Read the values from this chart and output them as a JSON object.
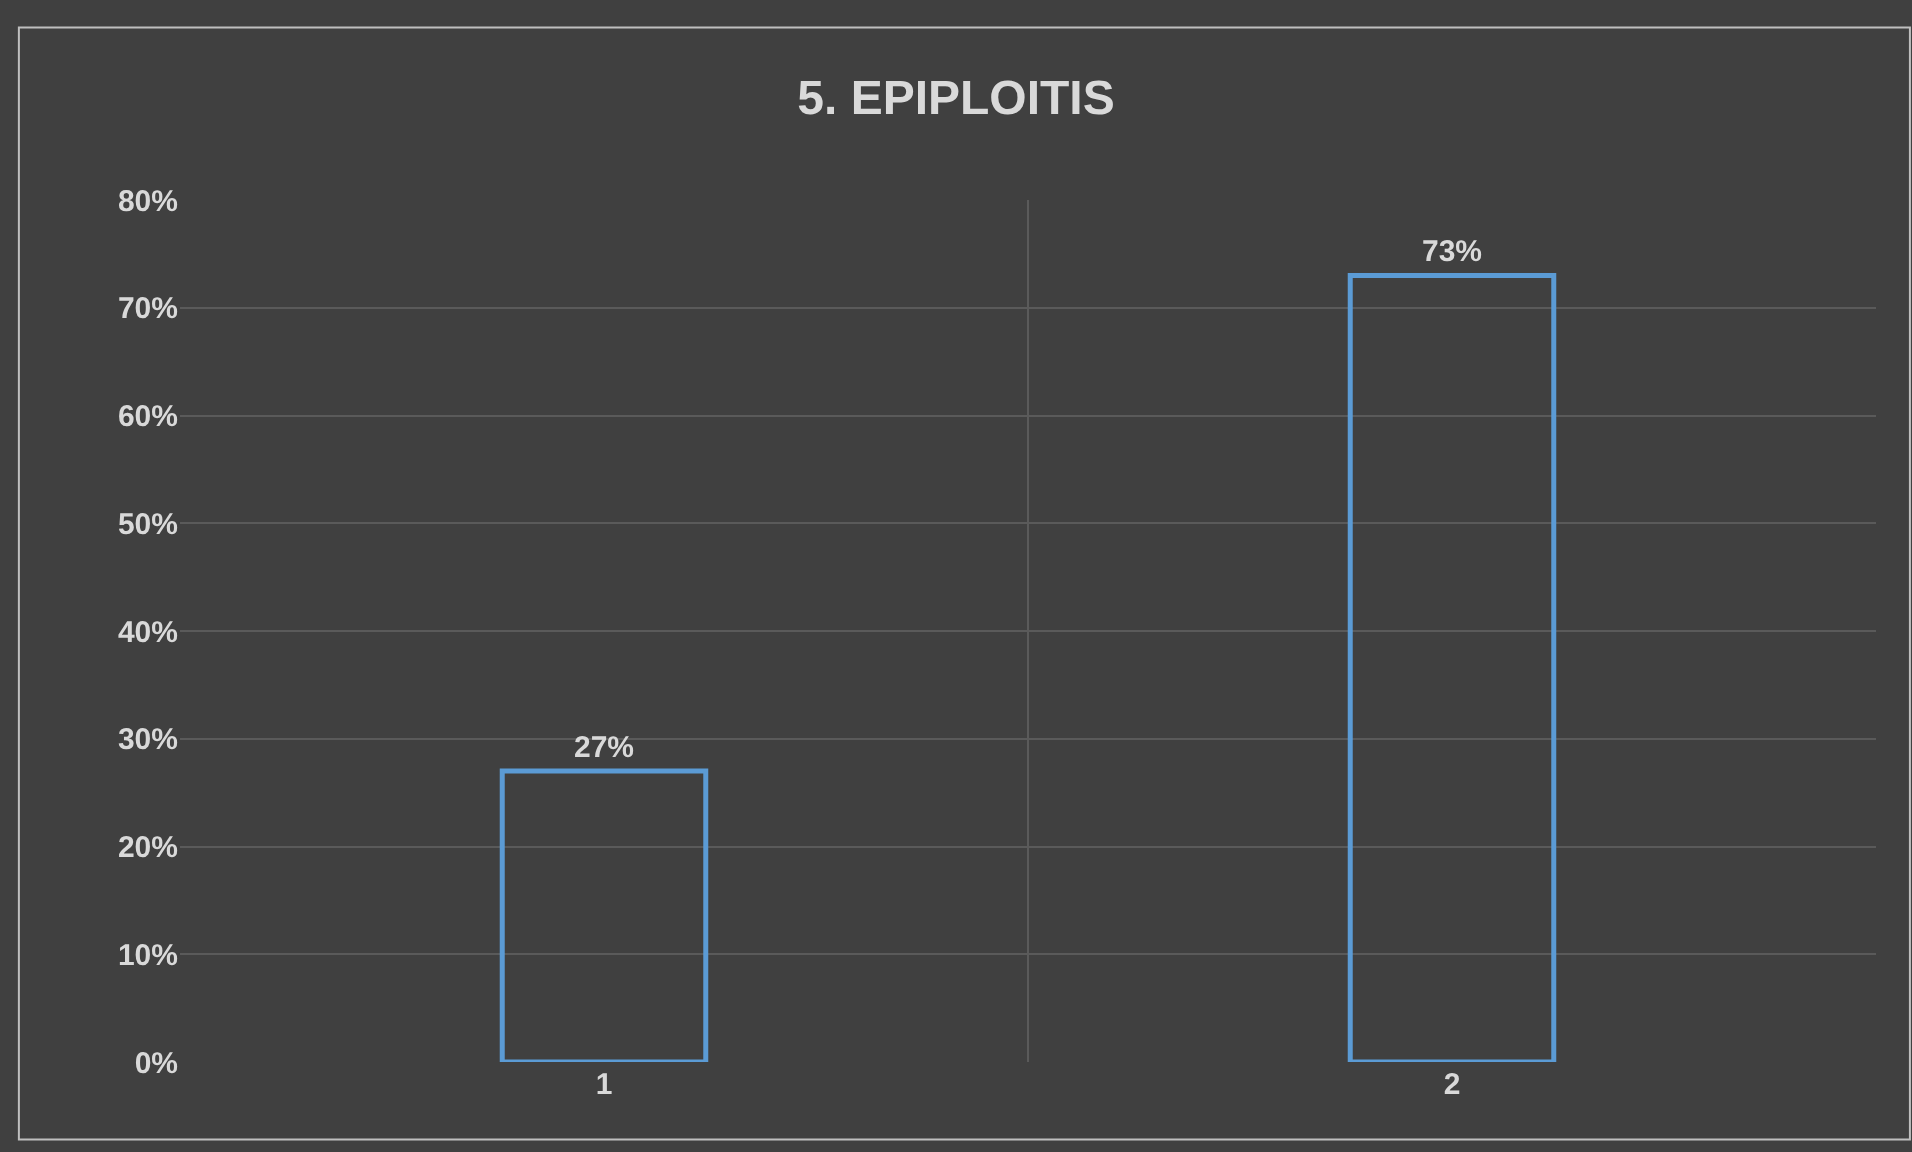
{
  "chart_data": {
    "type": "bar",
    "title": "5. EPIPLOITIS",
    "categories": [
      "1",
      "2"
    ],
    "series": [
      {
        "color": "#5b9bd5",
        "values": [
          27,
          73
        ]
      }
    ],
    "value_labels": [
      "27%",
      "73%"
    ],
    "ylim": [
      0,
      80
    ],
    "yticks": [
      {
        "value": 0,
        "label": "0%"
      },
      {
        "value": 10,
        "label": "10%"
      },
      {
        "value": 20,
        "label": "20%"
      },
      {
        "value": 30,
        "label": "30%"
      },
      {
        "value": 40,
        "label": "40%"
      },
      {
        "value": 50,
        "label": "50%"
      },
      {
        "value": 60,
        "label": "60%"
      },
      {
        "value": 70,
        "label": "70%"
      },
      {
        "value": 80,
        "label": "80%"
      }
    ],
    "grid": true
  }
}
